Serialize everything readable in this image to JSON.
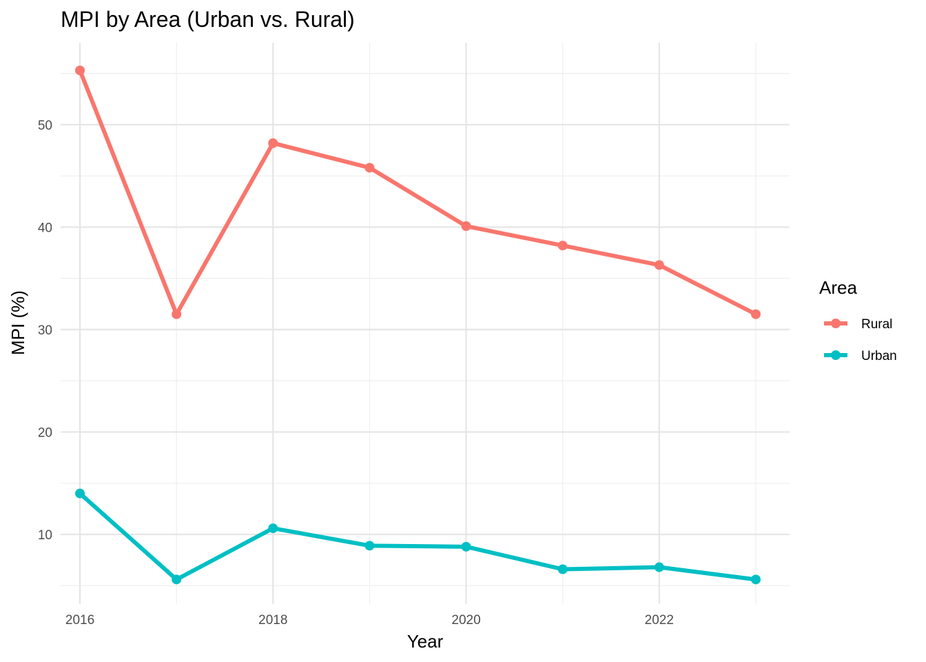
{
  "chart_data": {
    "type": "line",
    "title": "MPI by Area (Urban vs. Rural)",
    "xlabel": "Year",
    "ylabel": "MPI (%)",
    "x": [
      2016,
      2017,
      2018,
      2019,
      2020,
      2021,
      2022,
      2023
    ],
    "xlim": [
      2015.8,
      2023.35
    ],
    "ylim": [
      3.2,
      58.0
    ],
    "x_ticks": [
      2016,
      2018,
      2020,
      2022
    ],
    "x_tick_labels": [
      "2016",
      "2018",
      "2020",
      "2022"
    ],
    "x_minor_ticks": [
      2017,
      2019,
      2021,
      2023
    ],
    "y_ticks": [
      10,
      20,
      30,
      40,
      50
    ],
    "y_tick_labels": [
      "10",
      "20",
      "30",
      "40",
      "50"
    ],
    "y_minor_ticks": [
      5,
      15,
      25,
      35,
      45,
      55
    ],
    "grid": true,
    "legend": {
      "title": "Area",
      "placement": "right"
    },
    "series": [
      {
        "name": "Rural",
        "color": "#F8766D",
        "values": [
          55.3,
          31.5,
          48.2,
          45.8,
          40.1,
          38.2,
          36.3,
          31.5
        ]
      },
      {
        "name": "Urban",
        "color": "#00BFC4",
        "values": [
          14.0,
          5.6,
          10.6,
          8.9,
          8.8,
          6.6,
          6.8,
          5.6
        ]
      }
    ]
  }
}
